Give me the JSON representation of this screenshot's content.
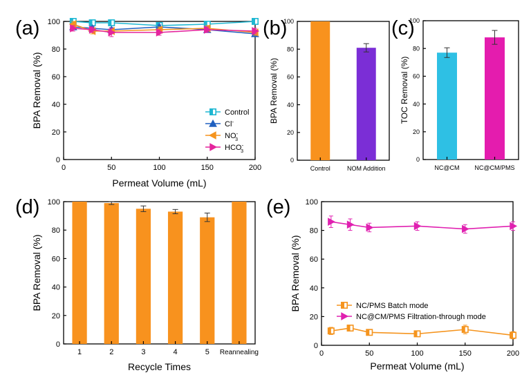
{
  "chart_data": [
    {
      "panel": "(a)",
      "type": "line",
      "xlabel": "Permeat Volume (mL)",
      "ylabel": "BPA Removal (%)",
      "xlim": [
        0,
        200
      ],
      "ylim": [
        0,
        100
      ],
      "xticks": [
        0,
        50,
        100,
        150,
        200
      ],
      "yticks": [
        0,
        20,
        40,
        60,
        80,
        100
      ],
      "x": [
        10,
        30,
        50,
        100,
        150,
        200
      ],
      "legend_position": "bottom-right",
      "series": [
        {
          "name": "Control",
          "label_main": "Control",
          "label_sup": "",
          "label_sub": "",
          "color": "#1fb7d2",
          "marker": "square",
          "values": [
            100,
            99,
            99,
            97,
            98,
            100
          ],
          "errors": [
            1,
            1,
            1,
            1,
            1,
            1
          ]
        },
        {
          "name": "Cl-",
          "label_main": "Cl",
          "label_sup": "-",
          "label_sub": "",
          "color": "#2060c0",
          "marker": "triangle-up",
          "values": [
            96,
            95,
            94,
            96,
            94,
            91
          ],
          "errors": [
            1.5,
            1.5,
            1.5,
            1.5,
            1.5,
            1.5
          ]
        },
        {
          "name": "NO3-",
          "label_main": "NO",
          "label_sup": "-",
          "label_sub": "3",
          "color": "#f5941e",
          "marker": "triangle-left",
          "values": [
            98,
            93,
            93,
            94,
            95,
            92
          ],
          "errors": [
            2,
            2,
            2,
            2,
            2,
            2
          ]
        },
        {
          "name": "HCO3-",
          "label_main": "HCO",
          "label_sup": "-",
          "label_sub": "3",
          "color": "#e4249c",
          "marker": "triangle-right",
          "values": [
            95,
            94,
            92,
            92,
            94,
            93
          ],
          "errors": [
            2,
            2,
            3,
            2,
            2,
            2
          ]
        }
      ]
    },
    {
      "panel": "(b)",
      "type": "bar",
      "ylabel": "BPA Removal (%)",
      "ylim": [
        0,
        100
      ],
      "yticks": [
        0,
        20,
        40,
        60,
        80,
        100
      ],
      "categories": [
        "Control",
        "NOM Addition"
      ],
      "values": [
        100,
        81
      ],
      "errors": [
        0,
        3
      ],
      "colors": [
        "#f8921e",
        "#7b2ed6"
      ]
    },
    {
      "panel": "(c)",
      "type": "bar",
      "ylabel": "TOC Removal (%)",
      "ylim": [
        0,
        100
      ],
      "yticks": [
        0,
        20,
        40,
        60,
        80,
        100
      ],
      "categories": [
        "NC@CM",
        "NC@CM/PMS"
      ],
      "values": [
        77,
        88
      ],
      "errors": [
        3.5,
        5
      ],
      "colors": [
        "#2ec0e4",
        "#e41cae"
      ]
    },
    {
      "panel": "(d)",
      "type": "bar",
      "xlabel": "Recycle Times",
      "ylabel": "BPA Removal (%)",
      "ylim": [
        0,
        100
      ],
      "yticks": [
        0,
        20,
        40,
        60,
        80,
        100
      ],
      "categories": [
        "1",
        "2",
        "3",
        "4",
        "5",
        "Reannealing"
      ],
      "values": [
        100,
        99,
        95,
        93,
        89,
        100
      ],
      "errors": [
        0,
        1,
        2,
        1.5,
        3,
        0
      ],
      "colors": [
        "#f8921e",
        "#f8921e",
        "#f8921e",
        "#f8921e",
        "#f8921e",
        "#f8921e"
      ]
    },
    {
      "panel": "(e)",
      "type": "line",
      "xlabel": "Permeat Volume (mL)",
      "ylabel": "BPA Removal (%)",
      "xlim": [
        0,
        200
      ],
      "ylim": [
        0,
        100
      ],
      "xticks": [
        0,
        50,
        100,
        150,
        200
      ],
      "yticks": [
        0,
        20,
        40,
        60,
        80,
        100
      ],
      "x": [
        10,
        30,
        50,
        100,
        150,
        200
      ],
      "legend_position": "bottom-left",
      "series": [
        {
          "name": "NC/PMS Batch mode",
          "label_main": "NC/PMS Batch mode",
          "label_sup": "",
          "label_sub": "",
          "color": "#f5941e",
          "marker": "square",
          "values": [
            10,
            12,
            9,
            8,
            11,
            7
          ],
          "errors": [
            2.5,
            2,
            2,
            1.5,
            3,
            2.5
          ]
        },
        {
          "name": "NC@CM/PMS Filtration-through mode",
          "label_main": "NC@CM/PMS Filtration-through mode",
          "label_sup": "",
          "label_sub": "",
          "color": "#e020b0",
          "marker": "triangle-right",
          "values": [
            86,
            84,
            82,
            83,
            81,
            83
          ],
          "errors": [
            4,
            4,
            3,
            3,
            3,
            3
          ]
        }
      ]
    }
  ]
}
